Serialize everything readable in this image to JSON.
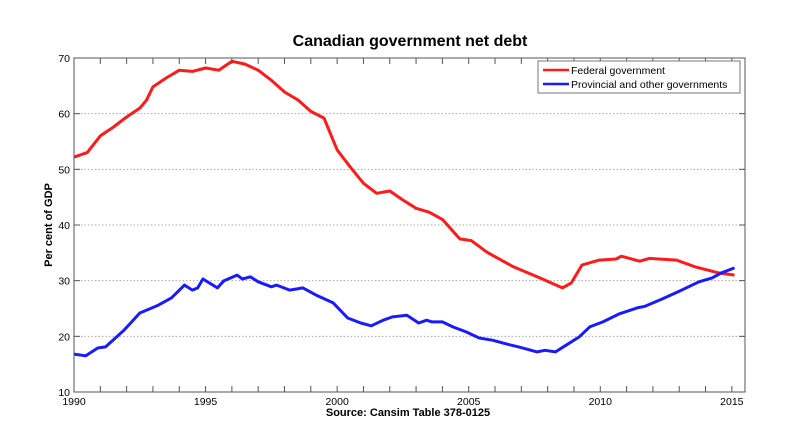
{
  "chart_data": {
    "type": "line",
    "title": "Canadian government net debt",
    "xlabel": "Source: Cansim Table 378-0125",
    "ylabel": "Per cent of GDP",
    "xlim": [
      1990,
      2015.5
    ],
    "ylim": [
      10,
      70
    ],
    "xticks": [
      1990,
      1991,
      1992,
      1993,
      1994,
      1995,
      1996,
      1997,
      1998,
      1999,
      2000,
      2001,
      2002,
      2003,
      2004,
      2005,
      2006,
      2007,
      2008,
      2009,
      2010,
      2011,
      2012,
      2013,
      2014,
      2015
    ],
    "xtick_labels": [
      "1990",
      "1995",
      "2000",
      "2005",
      "2010",
      "2015"
    ],
    "yticks": [
      10,
      20,
      30,
      40,
      50,
      60,
      70
    ],
    "ytick_labels": [
      "10",
      "20",
      "30",
      "40",
      "50",
      "60",
      "70"
    ],
    "grid": "horizontal dotted",
    "legend_position": "top-right",
    "series": [
      {
        "name": "Federal government",
        "color": "#ff1a1a",
        "x": [
          1990,
          1990.5,
          1991,
          1991.5,
          1992,
          1992.5,
          1992.75,
          1993,
          1993.5,
          1994,
          1994.5,
          1995,
          1995.5,
          1996,
          1996.5,
          1997,
          1997.5,
          1998,
          1998.5,
          1999,
          1999.5,
          2000,
          2000.5,
          2001,
          2001.5,
          2002,
          2002.5,
          2003,
          2003.5,
          2004,
          2004.66,
          2005.1,
          2005.7,
          2006.7,
          2007.7,
          2008.56,
          2008.9,
          2009.3,
          2009.96,
          2010.6,
          2010.8,
          2011.5,
          2011.86,
          2012.9,
          2013.6,
          2014.5,
          2015.1
        ],
        "y": [
          52.2,
          53.0,
          56.0,
          57.6,
          59.4,
          61.0,
          62.4,
          64.8,
          66.4,
          67.8,
          67.6,
          68.2,
          67.8,
          69.4,
          68.9,
          67.8,
          66.0,
          63.9,
          62.5,
          60.4,
          59.2,
          53.5,
          50.4,
          47.5,
          45.7,
          46.1,
          44.5,
          43.0,
          42.3,
          41.0,
          37.5,
          37.2,
          35.1,
          32.5,
          30.5,
          28.7,
          29.6,
          32.8,
          33.7,
          33.9,
          34.4,
          33.5,
          34.0,
          33.7,
          32.5,
          31.4,
          31.0
        ]
      },
      {
        "name": "Provincial and other governments",
        "color": "#1a1aff",
        "x": [
          1990,
          1990.45,
          1990.9,
          1991.2,
          1991.9,
          1992.5,
          1993.2,
          1993.7,
          1994.2,
          1994.5,
          1994.7,
          1994.9,
          1995.45,
          1995.7,
          1996.2,
          1996.4,
          1996.7,
          1997,
          1997.5,
          1997.7,
          1998.2,
          1998.7,
          1999.2,
          1999.85,
          2000.4,
          2000.9,
          2001.3,
          2001.75,
          2002.1,
          2002.65,
          2003.1,
          2003.4,
          2003.6,
          2004,
          2004.4,
          2004.9,
          2005.4,
          2005.9,
          2006.45,
          2006.9,
          2007.6,
          2007.9,
          2008.3,
          2008.7,
          2009.2,
          2009.6,
          2010.1,
          2010.7,
          2011.4,
          2011.7,
          2012.35,
          2013,
          2013.75,
          2014.25,
          2014.6,
          2015.1
        ],
        "y": [
          16.8,
          16.5,
          17.9,
          18.1,
          21.1,
          24.2,
          25.6,
          26.9,
          29.2,
          28.3,
          28.7,
          30.3,
          28.7,
          30.0,
          31.0,
          30.3,
          30.7,
          29.8,
          28.9,
          29.2,
          28.3,
          28.7,
          27.4,
          26.0,
          23.3,
          22.4,
          21.9,
          22.9,
          23.5,
          23.8,
          22.4,
          22.9,
          22.6,
          22.6,
          21.7,
          20.8,
          19.7,
          19.3,
          18.6,
          18.1,
          17.2,
          17.5,
          17.2,
          18.4,
          19.9,
          21.7,
          22.6,
          24.0,
          25.1,
          25.4,
          26.7,
          28.1,
          29.8,
          30.5,
          31.4,
          32.3
        ]
      }
    ]
  }
}
